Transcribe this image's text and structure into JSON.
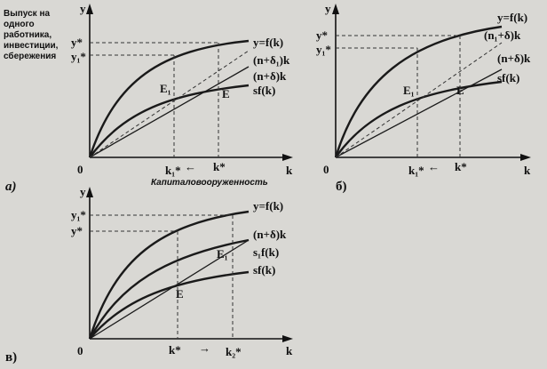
{
  "panels": [
    {
      "id": "a",
      "caption": "а)",
      "yaxis_caption": [
        "Выпуск на",
        "одного",
        "работника,",
        "инвестиции,",
        "сбережения"
      ],
      "xaxis_caption": "Капиталовооруженность",
      "axis_y": "y",
      "axis_x": "k",
      "origin": "0",
      "curve_labels": [
        "y=f(k)",
        "(n+δ₁)k",
        "(n+δ)k",
        "sf(k)"
      ],
      "y_ticks": [
        "y*",
        "y₁*"
      ],
      "x_ticks": [
        "k₁*",
        "k*"
      ],
      "points": [
        "E₁",
        "E"
      ],
      "arrow": "←"
    },
    {
      "id": "b",
      "caption": "б)",
      "axis_y": "y",
      "axis_x": "k",
      "origin": "0",
      "curve_labels": [
        "y=f(k)",
        "(n₁+δ)k",
        "(n+δ)k",
        "sf(k)"
      ],
      "y_ticks": [
        "y*",
        "y₁*"
      ],
      "x_ticks": [
        "k₁*",
        "k*"
      ],
      "points": [
        "E₁",
        "E"
      ],
      "arrow": "←"
    },
    {
      "id": "c",
      "caption": "в)",
      "axis_y": "y",
      "axis_x": "k",
      "origin": "0",
      "curve_labels": [
        "y=f(k)",
        "(n+δ)k",
        "s₁f(k)",
        "sf(k)"
      ],
      "y_ticks": [
        "y₁*",
        "y*"
      ],
      "x_ticks": [
        "k*",
        "k₂*"
      ],
      "points": [
        "E₁",
        "E"
      ],
      "arrow": "→"
    }
  ]
}
